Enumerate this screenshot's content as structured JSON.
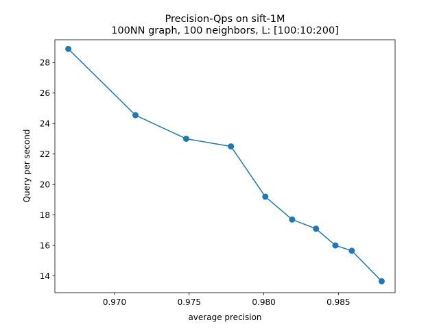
{
  "chart_data": {
    "type": "line",
    "title": "Precision-Qps on sift-1M",
    "subtitle": "100NN graph, 100 neighbors, L: [100:10:200]",
    "xlabel": "average precision",
    "ylabel": "Query per second",
    "xlim": [
      0.966,
      0.9888
    ],
    "ylim": [
      12.9,
      29.5
    ],
    "xticks": [
      0.97,
      0.975,
      0.98,
      0.985
    ],
    "xtick_labels": [
      "0.970",
      "0.975",
      "0.980",
      "0.985"
    ],
    "yticks": [
      14,
      16,
      18,
      20,
      22,
      24,
      26,
      28
    ],
    "ytick_labels": [
      "14",
      "16",
      "18",
      "20",
      "22",
      "24",
      "26",
      "28"
    ],
    "grid": false,
    "series": [
      {
        "color": "#1f77b4",
        "marker": "circle",
        "x": [
          0.9669,
          0.9714,
          0.9748,
          0.9778,
          0.9801,
          0.9819,
          0.9835,
          0.9848,
          0.9859,
          0.9879
        ],
        "y": [
          28.9,
          24.55,
          23.0,
          22.5,
          19.2,
          17.7,
          17.1,
          16.0,
          15.65,
          13.65
        ]
      }
    ]
  }
}
